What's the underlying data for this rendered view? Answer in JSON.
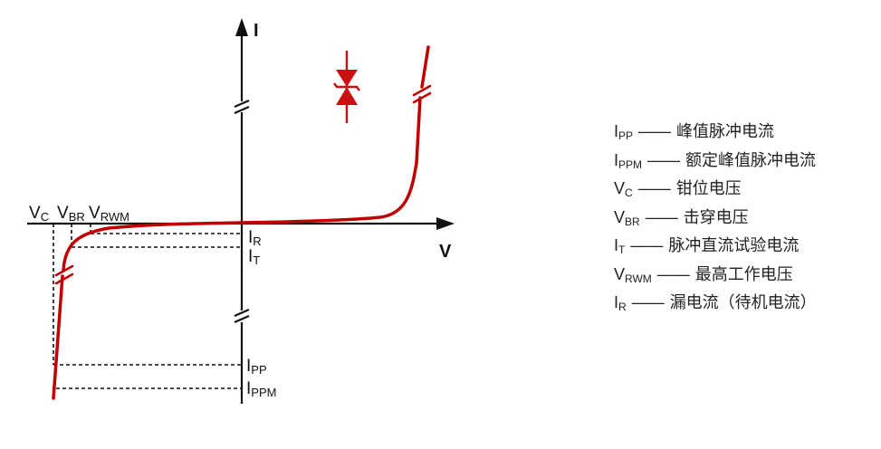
{
  "diagram": {
    "axes": {
      "y_label": "I",
      "x_label": "V"
    },
    "voltage_labels": [
      {
        "main": "V",
        "sub": "C"
      },
      {
        "main": "V",
        "sub": "BR"
      },
      {
        "main": "V",
        "sub": "RWM"
      }
    ],
    "current_labels": [
      {
        "main": "I",
        "sub": "R"
      },
      {
        "main": "I",
        "sub": "T"
      },
      {
        "main": "I",
        "sub": "PP"
      },
      {
        "main": "I",
        "sub": "PPM"
      }
    ],
    "colors": {
      "curve": "#c00000",
      "axis": "#111111",
      "diode": "#cc1010"
    },
    "icons": {
      "diode": "bidirectional-tvs-diode-icon"
    }
  },
  "legend": [
    {
      "main": "I",
      "sub": "PP",
      "dash": "——",
      "desc": "峰值脉冲电流"
    },
    {
      "main": "I",
      "sub": "PPM",
      "dash": "——",
      "desc": "额定峰值脉冲电流"
    },
    {
      "main": "V",
      "sub": "C",
      "dash": "——",
      "desc": "钳位电压"
    },
    {
      "main": "V",
      "sub": "BR",
      "dash": "——",
      "desc": "击穿电压"
    },
    {
      "main": "I",
      "sub": "T",
      "dash": "——",
      "desc": "脉冲直流试验电流"
    },
    {
      "main": "V",
      "sub": "RWM",
      "dash": "——",
      "desc": "最高工作电压"
    },
    {
      "main": "I",
      "sub": "R",
      "dash": "——",
      "desc": "漏电流（待机电流）"
    }
  ]
}
